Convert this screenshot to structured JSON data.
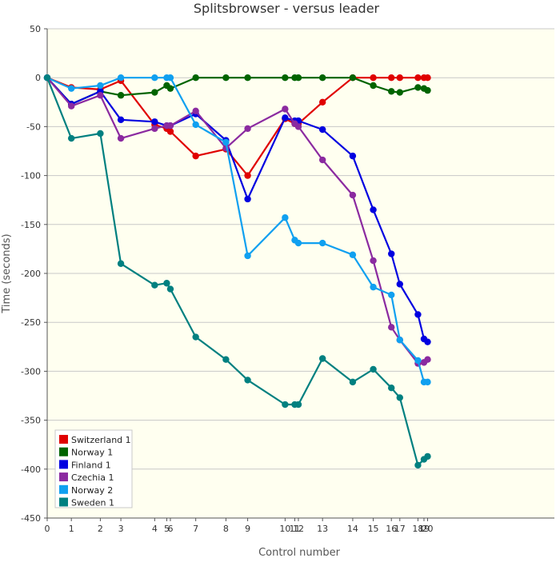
{
  "chart_data": {
    "type": "line",
    "title": "Splitsbrowser - versus leader",
    "xlabel": "Control number",
    "ylabel": "Time (seconds)",
    "ylim": [
      -450,
      50
    ],
    "yticks": [
      50,
      0,
      -50,
      -100,
      -150,
      -200,
      -250,
      -300,
      -350,
      -400,
      -450
    ],
    "xlim": [
      0,
      21
    ],
    "x_ticks": [
      {
        "x": 0,
        "label": "0"
      },
      {
        "x": 1,
        "label": "1"
      },
      {
        "x": 2.2,
        "label": "2"
      },
      {
        "x": 3.05,
        "label": "3"
      },
      {
        "x": 4.45,
        "label": "4"
      },
      {
        "x": 4.95,
        "label": "5"
      },
      {
        "x": 5.1,
        "label": "6"
      },
      {
        "x": 6.15,
        "label": "7"
      },
      {
        "x": 7.4,
        "label": "8"
      },
      {
        "x": 8.3,
        "label": "9"
      },
      {
        "x": 9.85,
        "label": "10"
      },
      {
        "x": 10.25,
        "label": "11"
      },
      {
        "x": 10.4,
        "label": "12"
      },
      {
        "x": 11.4,
        "label": "13"
      },
      {
        "x": 12.65,
        "label": "14"
      },
      {
        "x": 13.5,
        "label": "15"
      },
      {
        "x": 14.25,
        "label": "16"
      },
      {
        "x": 14.6,
        "label": "17"
      },
      {
        "x": 15.35,
        "label": "18"
      },
      {
        "x": 15.6,
        "label": "19"
      },
      {
        "x": 15.75,
        "label": "20"
      }
    ],
    "grid": true,
    "legend_position": "bottom-left",
    "series": [
      {
        "name": "Switzerland 1",
        "color": "#e00000",
        "x": [
          0,
          1,
          2.2,
          3.05,
          4.45,
          4.95,
          5.1,
          6.15,
          7.4,
          8.3,
          9.85,
          10.25,
          10.4,
          11.4,
          12.65,
          13.5,
          14.25,
          14.6,
          15.35,
          15.6,
          15.75
        ],
        "y": [
          0,
          -10,
          -12,
          -3,
          -48,
          -52,
          -55,
          -80,
          -73,
          -100,
          -42,
          -47,
          -47,
          -25,
          0,
          0,
          0,
          0,
          0,
          0,
          0
        ]
      },
      {
        "name": "Norway 1",
        "color": "#006400",
        "x": [
          0,
          1,
          2.2,
          3.05,
          4.45,
          4.95,
          5.1,
          6.15,
          7.4,
          8.3,
          9.85,
          10.25,
          10.4,
          11.4,
          12.65,
          13.5,
          14.25,
          14.6,
          15.35,
          15.6,
          15.75
        ],
        "y": [
          0,
          -27,
          -14,
          -18,
          -15,
          -8,
          -11,
          0,
          0,
          0,
          0,
          0,
          0,
          0,
          0,
          -8,
          -14,
          -15,
          -10,
          -11,
          -13
        ]
      },
      {
        "name": "Finland 1",
        "color": "#0000e0",
        "x": [
          0,
          1,
          2.2,
          3.05,
          4.45,
          4.95,
          5.1,
          6.15,
          7.4,
          8.3,
          9.85,
          10.25,
          10.4,
          11.4,
          12.65,
          13.5,
          14.25,
          14.6,
          15.35,
          15.6,
          15.75
        ],
        "y": [
          0,
          -27,
          -14,
          -43,
          -45,
          -49,
          -49,
          -37,
          -64,
          -124,
          -41,
          -44,
          -44,
          -53,
          -80,
          -135,
          -180,
          -211,
          -242,
          -267,
          -270
        ]
      },
      {
        "name": "Czechia 1",
        "color": "#8b2aa0",
        "x": [
          0,
          1,
          2.2,
          3.05,
          4.45,
          4.95,
          5.1,
          6.15,
          7.4,
          8.3,
          9.85,
          10.25,
          10.4,
          11.4,
          12.65,
          13.5,
          14.25,
          14.6,
          15.35,
          15.6,
          15.75
        ],
        "y": [
          0,
          -29,
          -18,
          -62,
          -52,
          -49,
          -49,
          -34,
          -72,
          -52,
          -32,
          -47,
          -50,
          -84,
          -120,
          -187,
          -255,
          -268,
          -292,
          -291,
          -288
        ]
      },
      {
        "name": "Norway 2",
        "color": "#10a0f0",
        "x": [
          0,
          1,
          2.2,
          3.05,
          4.45,
          4.95,
          5.1,
          6.15,
          7.4,
          8.3,
          9.85,
          10.25,
          10.4,
          11.4,
          12.65,
          13.5,
          14.25,
          14.6,
          15.35,
          15.6,
          15.75
        ],
        "y": [
          0,
          -11,
          -8,
          0,
          0,
          0,
          0,
          -48,
          -66,
          -182,
          -143,
          -166,
          -169,
          -169,
          -181,
          -214,
          -222,
          -268,
          -289,
          -311,
          -311
        ]
      },
      {
        "name": "Sweden 1",
        "color": "#008080",
        "x": [
          0,
          1,
          2.2,
          3.05,
          4.45,
          4.95,
          5.1,
          6.15,
          7.4,
          8.3,
          9.85,
          10.25,
          10.4,
          11.4,
          12.65,
          13.5,
          14.25,
          14.6,
          15.35,
          15.6,
          15.75
        ],
        "y": [
          0,
          -62,
          -57,
          -190,
          -212,
          -210,
          -216,
          -265,
          -288,
          -309,
          -334,
          -334,
          -334,
          -287,
          -311,
          -298,
          -317,
          -327,
          -396,
          -390,
          -387
        ]
      }
    ]
  }
}
